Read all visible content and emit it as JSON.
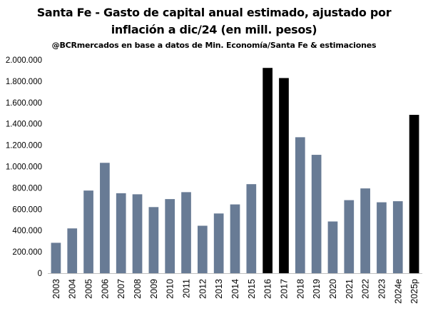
{
  "chart_data": {
    "type": "bar",
    "title_line1": "Santa Fe - Gasto de capital anual estimado, ajustado por",
    "title_line2": "inflación a dic/24 (en mill. pesos)",
    "subtitle": "@BCRmercados en base a datos de Min. Economía/Santa Fe & estimaciones",
    "xlabel": "",
    "ylabel": "",
    "ylim": [
      0,
      2000000
    ],
    "yticks": [
      "0",
      "200.000",
      "400.000",
      "600.000",
      "800.000",
      "1.000.000",
      "1.200.000",
      "1.400.000",
      "1.600.000",
      "1.800.000",
      "2.000.000"
    ],
    "ytick_values": [
      0,
      200000,
      400000,
      600000,
      800000,
      1000000,
      1200000,
      1400000,
      1600000,
      1800000,
      2000000
    ],
    "categories": [
      "2003",
      "2004",
      "2005",
      "2006",
      "2007",
      "2008",
      "2009",
      "2010",
      "2011",
      "2012",
      "2013",
      "2014",
      "2015",
      "2016",
      "2017",
      "2018",
      "2019",
      "2020",
      "2021",
      "2022",
      "2023",
      "2024e",
      "2025p"
    ],
    "values": [
      285000,
      420000,
      775000,
      1035000,
      750000,
      740000,
      620000,
      695000,
      760000,
      445000,
      560000,
      645000,
      835000,
      1925000,
      1830000,
      1275000,
      1110000,
      485000,
      685000,
      795000,
      665000,
      675000,
      1485000
    ],
    "highlight": [
      "2016",
      "2017",
      "2025p"
    ],
    "grid": false,
    "legend": "none",
    "colors": {
      "default": "#687b95",
      "highlight": "#000000"
    }
  }
}
